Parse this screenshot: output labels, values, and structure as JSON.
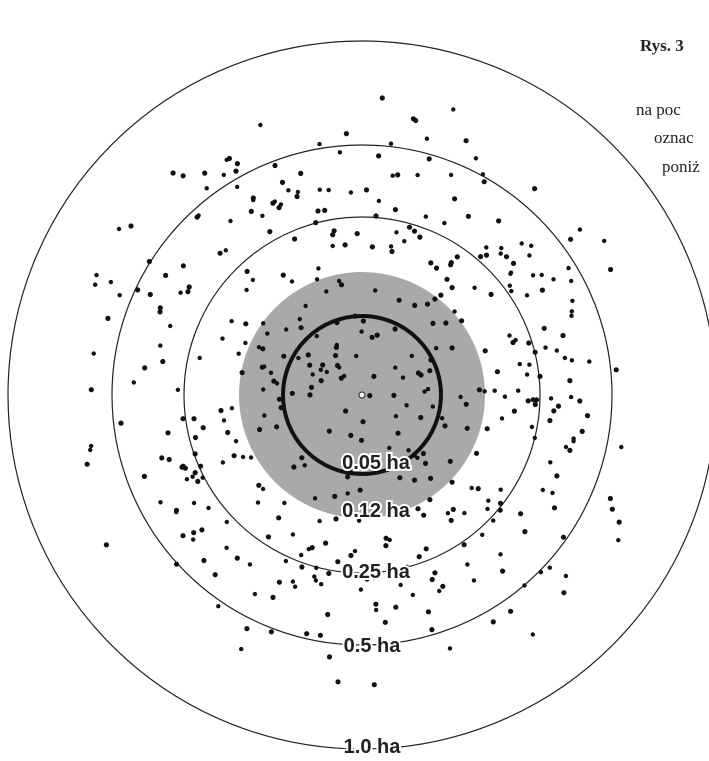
{
  "caption": {
    "title": "Rys. 3",
    "line1": "na poc",
    "line2": "oznac",
    "line3": "poniż"
  },
  "rings": [
    {
      "label": "1.0 ha"
    },
    {
      "label": "0.5 ha"
    },
    {
      "label": "0.25 ha"
    },
    {
      "label": "0.12 ha"
    },
    {
      "label": "0.05 ha"
    }
  ],
  "colors": {
    "shaded_plot": "#a9a9a9",
    "tree_dot": "#111111",
    "ring_line": "#222222",
    "background": "#ffffff"
  },
  "tree_count_approx": 470
}
